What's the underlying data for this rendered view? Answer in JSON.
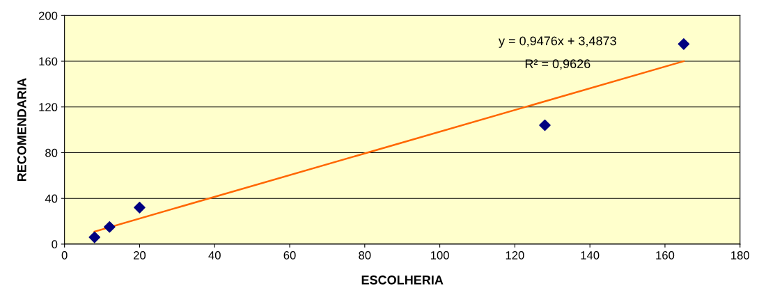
{
  "chart_data": {
    "type": "scatter",
    "xlabel": "ESCOLHERIA",
    "ylabel": "RECOMENDARIA",
    "xlim": [
      0,
      180
    ],
    "xticks": [
      0,
      20,
      40,
      60,
      80,
      100,
      120,
      140,
      160,
      180
    ],
    "ylim": [
      0,
      200
    ],
    "yticks": [
      0,
      40,
      80,
      120,
      160,
      200
    ],
    "grid": "y",
    "legend": false,
    "marker": "diamond",
    "series": [
      {
        "color": "#000080",
        "x": [
          8,
          12,
          20,
          128,
          165
        ],
        "values": [
          6,
          15,
          32,
          104,
          175
        ]
      },
      {
        "type": "line",
        "color": "#ff6600",
        "marker": "none",
        "line_style": "solid",
        "x": [
          8,
          165
        ],
        "values": [
          11,
          160
        ]
      }
    ],
    "annotations": [
      "y = 0,9476x + 3,4873",
      "R² = 0,9626"
    ]
  }
}
